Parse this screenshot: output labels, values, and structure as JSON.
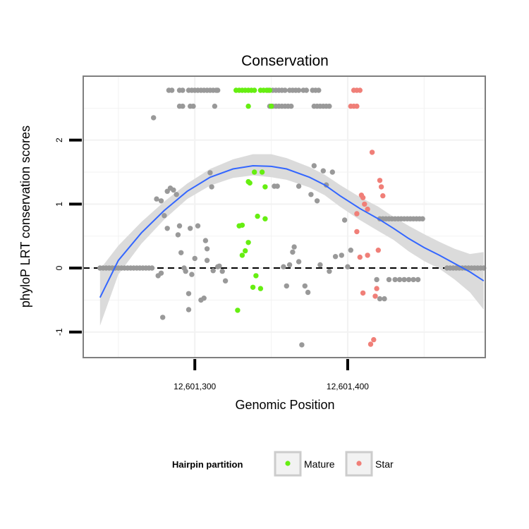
{
  "chart_data": {
    "type": "scatter",
    "title": "Conservation",
    "xlabel": "Genomic Position",
    "ylabel": "phyloP LRT conservation scores",
    "xlim": [
      12601227,
      12601490
    ],
    "ylim": [
      -1.4,
      3.0
    ],
    "x_ticks": [
      12601300,
      12601400
    ],
    "x_tick_labels": [
      "12,601,300",
      "12,601,400"
    ],
    "y_ticks": [
      -1,
      0,
      1,
      2
    ],
    "y_tick_labels": [
      "-1",
      "0",
      "1",
      "2"
    ],
    "grid": true,
    "reference_line": {
      "y": 0,
      "style": "dashed"
    },
    "legend": {
      "title": "Hairpin partition",
      "position": "bottom",
      "entries": [
        {
          "name": "Mature",
          "color": "#66ee11"
        },
        {
          "name": "Star",
          "color": "#f07f78"
        }
      ]
    },
    "colors": {
      "other": "#999999",
      "Mature": "#66ee11",
      "Star": "#f07f78",
      "smooth": "#3366ff",
      "ribbon": "#d9d9d9",
      "panel_border": "#7f7f7f"
    },
    "series": [
      {
        "name": "",
        "group": "other",
        "points": [
          [
            12601238,
            0
          ],
          [
            12601240,
            0
          ],
          [
            12601242,
            0
          ],
          [
            12601244,
            0
          ],
          [
            12601246,
            0
          ],
          [
            12601248,
            0
          ],
          [
            12601250,
            0
          ],
          [
            12601252,
            0
          ],
          [
            12601254,
            0
          ],
          [
            12601256,
            0
          ],
          [
            12601258,
            0
          ],
          [
            12601260,
            0
          ],
          [
            12601262,
            0
          ],
          [
            12601264,
            0
          ],
          [
            12601266,
            0
          ],
          [
            12601268,
            0
          ],
          [
            12601270,
            0
          ],
          [
            12601272,
            0
          ],
          [
            12601273,
            2.35
          ],
          [
            12601275,
            1.08
          ],
          [
            12601278,
            1.05
          ],
          [
            12601276,
            -0.12
          ],
          [
            12601278,
            -0.08
          ],
          [
            12601279,
            -0.77
          ],
          [
            12601280,
            0.82
          ],
          [
            12601282,
            0.62
          ],
          [
            12601282,
            1.2
          ],
          [
            12601284,
            1.25
          ],
          [
            12601286,
            1.22
          ],
          [
            12601288,
            1.15
          ],
          [
            12601289,
            0.52
          ],
          [
            12601290,
            0.66
          ],
          [
            12601291,
            0.24
          ],
          [
            12601293,
            0
          ],
          [
            12601294,
            -0.05
          ],
          [
            12601296,
            -0.4
          ],
          [
            12601296,
            -0.65
          ],
          [
            12601297,
            0.62
          ],
          [
            12601298,
            -0.1
          ],
          [
            12601300,
            0.15
          ],
          [
            12601302,
            0.66
          ],
          [
            12601304,
            -0.5
          ],
          [
            12601306,
            -0.47
          ],
          [
            12601307,
            0.43
          ],
          [
            12601308,
            0.3
          ],
          [
            12601308,
            0.12
          ],
          [
            12601310,
            1.49
          ],
          [
            12601311,
            1.27
          ],
          [
            12601312,
            -0.04
          ],
          [
            12601315,
            0.02
          ],
          [
            12601316,
            0.03
          ],
          [
            12601318,
            -0.05
          ],
          [
            12601320,
            -0.2
          ],
          [
            12601352,
            1.28
          ],
          [
            12601354,
            1.28
          ],
          [
            12601358,
            0.02
          ],
          [
            12601360,
            -0.28
          ],
          [
            12601362,
            0.05
          ],
          [
            12601364,
            0.25
          ],
          [
            12601365,
            0.33
          ],
          [
            12601368,
            0.1
          ],
          [
            12601368,
            1.28
          ],
          [
            12601370,
            -1.2
          ],
          [
            12601372,
            -0.28
          ],
          [
            12601374,
            -0.38
          ],
          [
            12601376,
            1.15
          ],
          [
            12601378,
            1.6
          ],
          [
            12601380,
            1.05
          ],
          [
            12601382,
            0.05
          ],
          [
            12601384,
            1.52
          ],
          [
            12601386,
            1.3
          ],
          [
            12601388,
            -0.05
          ],
          [
            12601390,
            1.5
          ],
          [
            12601392,
            0.18
          ],
          [
            12601396,
            0.2
          ],
          [
            12601398,
            0.75
          ],
          [
            12601400,
            0.02
          ],
          [
            12601402,
            0.28
          ],
          [
            12601421,
            0.77
          ],
          [
            12601423,
            0.77
          ],
          [
            12601425,
            0.77
          ],
          [
            12601427,
            0.77
          ],
          [
            12601429,
            0.77
          ],
          [
            12601431,
            0.77
          ],
          [
            12601433,
            0.77
          ],
          [
            12601435,
            0.77
          ],
          [
            12601437,
            0.77
          ],
          [
            12601439,
            0.77
          ],
          [
            12601441,
            0.77
          ],
          [
            12601443,
            0.77
          ],
          [
            12601445,
            0.77
          ],
          [
            12601447,
            0.77
          ],
          [
            12601449,
            0.77
          ],
          [
            12601419,
            -0.18
          ],
          [
            12601421,
            -0.48
          ],
          [
            12601424,
            -0.48
          ],
          [
            12601427,
            -0.18
          ],
          [
            12601431,
            -0.18
          ],
          [
            12601434,
            -0.18
          ],
          [
            12601437,
            -0.18
          ],
          [
            12601440,
            -0.18
          ],
          [
            12601443,
            -0.18
          ],
          [
            12601446,
            -0.18
          ],
          [
            12601465,
            0
          ],
          [
            12601467,
            0
          ],
          [
            12601469,
            0
          ],
          [
            12601471,
            0
          ],
          [
            12601473,
            0
          ],
          [
            12601475,
            0
          ],
          [
            12601477,
            0
          ],
          [
            12601479,
            0
          ],
          [
            12601481,
            0
          ],
          [
            12601483,
            0
          ],
          [
            12601485,
            0
          ],
          [
            12601487,
            0
          ],
          [
            12601489,
            0
          ],
          [
            12601283,
            2.78
          ],
          [
            12601285,
            2.78
          ],
          [
            12601290,
            2.78
          ],
          [
            12601292,
            2.78
          ],
          [
            12601296,
            2.78
          ],
          [
            12601298,
            2.78
          ],
          [
            12601300,
            2.78
          ],
          [
            12601302,
            2.78
          ],
          [
            12601304,
            2.78
          ],
          [
            12601306,
            2.78
          ],
          [
            12601308,
            2.78
          ],
          [
            12601310,
            2.78
          ],
          [
            12601312,
            2.78
          ],
          [
            12601314,
            2.78
          ],
          [
            12601315,
            2.78
          ],
          [
            12601348,
            2.78
          ],
          [
            12601351,
            2.78
          ],
          [
            12601353,
            2.78
          ],
          [
            12601355,
            2.78
          ],
          [
            12601357,
            2.78
          ],
          [
            12601359,
            2.78
          ],
          [
            12601362,
            2.78
          ],
          [
            12601364,
            2.78
          ],
          [
            12601366,
            2.78
          ],
          [
            12601368,
            2.78
          ],
          [
            12601371,
            2.78
          ],
          [
            12601373,
            2.78
          ],
          [
            12601377,
            2.78
          ],
          [
            12601379,
            2.78
          ],
          [
            12601381,
            2.78
          ],
          [
            12601290,
            2.53
          ],
          [
            12601292,
            2.53
          ],
          [
            12601297,
            2.53
          ],
          [
            12601299,
            2.53
          ],
          [
            12601313,
            2.53
          ],
          [
            12601349,
            2.53
          ],
          [
            12601351,
            2.53
          ],
          [
            12601353,
            2.53
          ],
          [
            12601355,
            2.53
          ],
          [
            12601357,
            2.53
          ],
          [
            12601359,
            2.53
          ],
          [
            12601361,
            2.53
          ],
          [
            12601363,
            2.53
          ],
          [
            12601378,
            2.53
          ],
          [
            12601380,
            2.53
          ],
          [
            12601382,
            2.53
          ],
          [
            12601384,
            2.53
          ],
          [
            12601386,
            2.53
          ],
          [
            12601388,
            2.53
          ]
        ]
      },
      {
        "name": "Mature",
        "group": "Mature",
        "points": [
          [
            12601327,
            2.78
          ],
          [
            12601329,
            2.78
          ],
          [
            12601331,
            2.78
          ],
          [
            12601333,
            2.78
          ],
          [
            12601335,
            2.78
          ],
          [
            12601337,
            2.78
          ],
          [
            12601339,
            2.78
          ],
          [
            12601343,
            2.78
          ],
          [
            12601345,
            2.78
          ],
          [
            12601347,
            2.78
          ],
          [
            12601349,
            2.78
          ],
          [
            12601335,
            2.53
          ],
          [
            12601350,
            2.53
          ],
          [
            12601328,
            -0.66
          ],
          [
            12601329,
            0.66
          ],
          [
            12601331,
            0.67
          ],
          [
            12601331,
            0.2
          ],
          [
            12601333,
            0.27
          ],
          [
            12601335,
            0.4
          ],
          [
            12601335,
            1.35
          ],
          [
            12601336,
            1.33
          ],
          [
            12601338,
            -0.3
          ],
          [
            12601339,
            1.5
          ],
          [
            12601340,
            -0.12
          ],
          [
            12601341,
            0.81
          ],
          [
            12601343,
            -0.32
          ],
          [
            12601344,
            1.5
          ],
          [
            12601346,
            1.27
          ],
          [
            12601346,
            0.77
          ]
        ]
      },
      {
        "name": "Star",
        "group": "Star",
        "points": [
          [
            12601404,
            2.78
          ],
          [
            12601406,
            2.78
          ],
          [
            12601408,
            2.78
          ],
          [
            12601402,
            2.53
          ],
          [
            12601404,
            2.53
          ],
          [
            12601406,
            2.53
          ],
          [
            12601406,
            0.85
          ],
          [
            12601406,
            0.57
          ],
          [
            12601408,
            0.17
          ],
          [
            12601409,
            1.14
          ],
          [
            12601410,
            1.1
          ],
          [
            12601410,
            -0.39
          ],
          [
            12601411,
            1.0
          ],
          [
            12601413,
            0.92
          ],
          [
            12601413,
            0.2
          ],
          [
            12601415,
            -1.19
          ],
          [
            12601416,
            1.81
          ],
          [
            12601417,
            -1.12
          ],
          [
            12601418,
            -0.44
          ],
          [
            12601419,
            -0.32
          ],
          [
            12601420,
            0.28
          ],
          [
            12601421,
            1.37
          ],
          [
            12601422,
            1.27
          ],
          [
            12601423,
            1.13
          ]
        ]
      }
    ],
    "smooth": {
      "x": [
        12601238,
        12601250,
        12601265,
        12601280,
        12601295,
        12601310,
        12601325,
        12601338,
        12601350,
        12601360,
        12601375,
        12601385,
        12601395,
        12601408,
        12601420,
        12601430,
        12601440,
        12601450,
        12601460,
        12601470,
        12601480,
        12601489
      ],
      "y": [
        -0.46,
        0.12,
        0.55,
        0.9,
        1.2,
        1.42,
        1.55,
        1.6,
        1.59,
        1.55,
        1.42,
        1.3,
        1.13,
        0.93,
        0.77,
        0.62,
        0.46,
        0.32,
        0.2,
        0.07,
        -0.06,
        -0.2
      ],
      "upper": [
        -0.02,
        0.35,
        0.72,
        1.04,
        1.32,
        1.55,
        1.7,
        1.78,
        1.78,
        1.72,
        1.58,
        1.46,
        1.3,
        1.11,
        0.96,
        0.8,
        0.66,
        0.53,
        0.41,
        0.3,
        0.22,
        0.25
      ],
      "lower": [
        -0.9,
        -0.1,
        0.38,
        0.76,
        1.08,
        1.29,
        1.41,
        1.45,
        1.42,
        1.38,
        1.26,
        1.14,
        0.96,
        0.75,
        0.58,
        0.44,
        0.26,
        0.11,
        -0.01,
        -0.18,
        -0.38,
        -0.65
      ]
    }
  }
}
